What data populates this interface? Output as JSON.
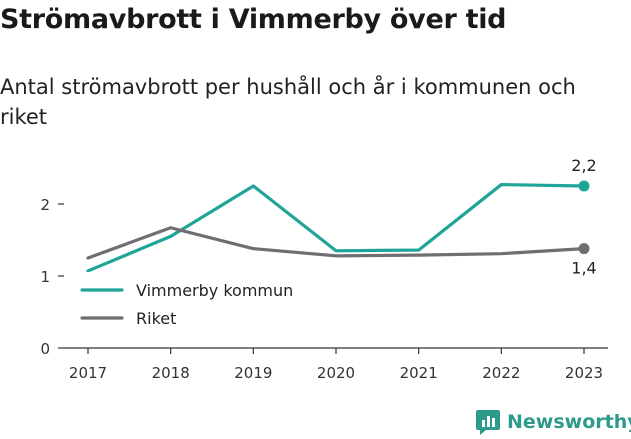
{
  "title": "Strömavbrott i Vimmerby över tid",
  "subtitle": "Antal strömavbrott per hushåll och år i kommunen och riket",
  "brand": "Newsworthy",
  "colors": {
    "vimmerby": "#1fa598",
    "riket": "#6e6e73",
    "axis": "#333333"
  },
  "chart_data": {
    "type": "line",
    "x": [
      "2017",
      "2018",
      "2019",
      "2020",
      "2021",
      "2022",
      "2023"
    ],
    "yticks": [
      "0",
      "1",
      "2"
    ],
    "ylim": [
      0,
      2.4
    ],
    "grid": false,
    "legend": "bottom-left",
    "series": [
      {
        "name": "Vimmerby kommun",
        "values": [
          1.07,
          1.55,
          2.25,
          1.35,
          1.36,
          2.27,
          2.25
        ],
        "end_label": "2,2"
      },
      {
        "name": "Riket",
        "values": [
          1.25,
          1.67,
          1.38,
          1.28,
          1.29,
          1.31,
          1.38
        ],
        "end_label": "1,4"
      }
    ]
  }
}
